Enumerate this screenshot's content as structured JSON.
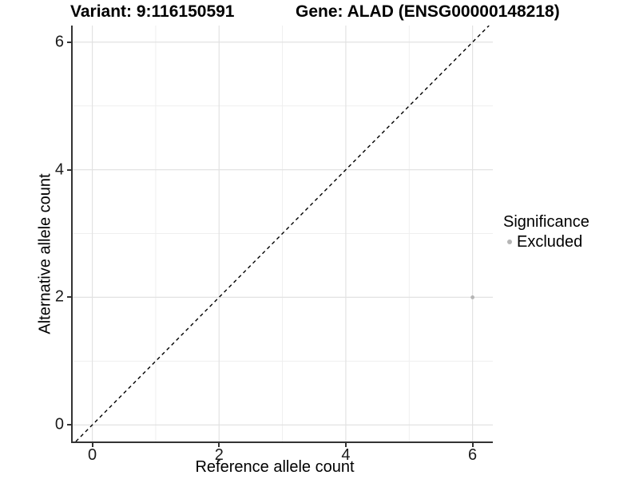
{
  "chart_data": {
    "type": "scatter",
    "title_left": "Variant: 9:116150591",
    "title_right": "Gene: ALAD (ENSG00000148218)",
    "xlabel": "Reference allele count",
    "ylabel": "Alternative allele count",
    "xlim": [
      -0.31,
      6.32
    ],
    "ylim": [
      -0.26,
      6.26
    ],
    "x_ticks": [
      0,
      2,
      4,
      6
    ],
    "y_ticks": [
      0,
      2,
      4,
      6
    ],
    "grid": {
      "major": [
        0,
        2,
        4,
        6
      ],
      "minor": [
        1,
        3,
        5
      ],
      "major_color": "#e2e2e2",
      "minor_color": "#efefef"
    },
    "identity_line": {
      "style": "dashed",
      "x1": -0.26,
      "y1": -0.26,
      "x2": 6.26,
      "y2": 6.26,
      "color": "#000000"
    },
    "points": [
      {
        "x": 6,
        "y": 2,
        "series": "Excluded",
        "color": "#b5b5b5",
        "radius": 2.4
      }
    ],
    "legend": {
      "position": "right",
      "title": "Significance",
      "items": [
        {
          "label": "Excluded",
          "color": "#b5b5b5"
        }
      ]
    },
    "axis_color": "#333333",
    "text_color": "#000000",
    "background": "#ffffff"
  }
}
